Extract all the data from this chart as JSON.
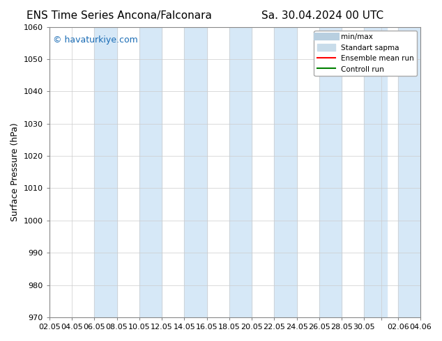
{
  "title_left": "ENS Time Series Ancona/Falconara",
  "title_right": "Sa. 30.04.2024 00 UTC",
  "ylabel": "Surface Pressure (hPa)",
  "watermark": "© havaturkiye.com",
  "ylim": [
    970,
    1060
  ],
  "yticks": [
    970,
    980,
    990,
    1000,
    1010,
    1020,
    1030,
    1040,
    1050,
    1060
  ],
  "xtick_labels": [
    "02.05",
    "04.05",
    "06.05",
    "08.05",
    "10.05",
    "12.05",
    "14.05",
    "16.05",
    "18.05",
    "20.05",
    "22.05",
    "24.05",
    "26.05",
    "28.05",
    "30.05",
    "",
    "02.06",
    "04.06"
  ],
  "shaded_band_color": "#d6e8f7",
  "shaded_band_alpha": 0.7,
  "background_color": "#ffffff",
  "legend_entries": [
    "min/max",
    "Standart sapma",
    "Ensemble mean run",
    "Controll run"
  ],
  "legend_colors": [
    "#b0c4d8",
    "#aec6d8",
    "#ff0000",
    "#008000"
  ],
  "title_fontsize": 11,
  "tick_fontsize": 8,
  "ylabel_fontsize": 9,
  "watermark_color": "#1a6cb5",
  "num_bands": 9
}
